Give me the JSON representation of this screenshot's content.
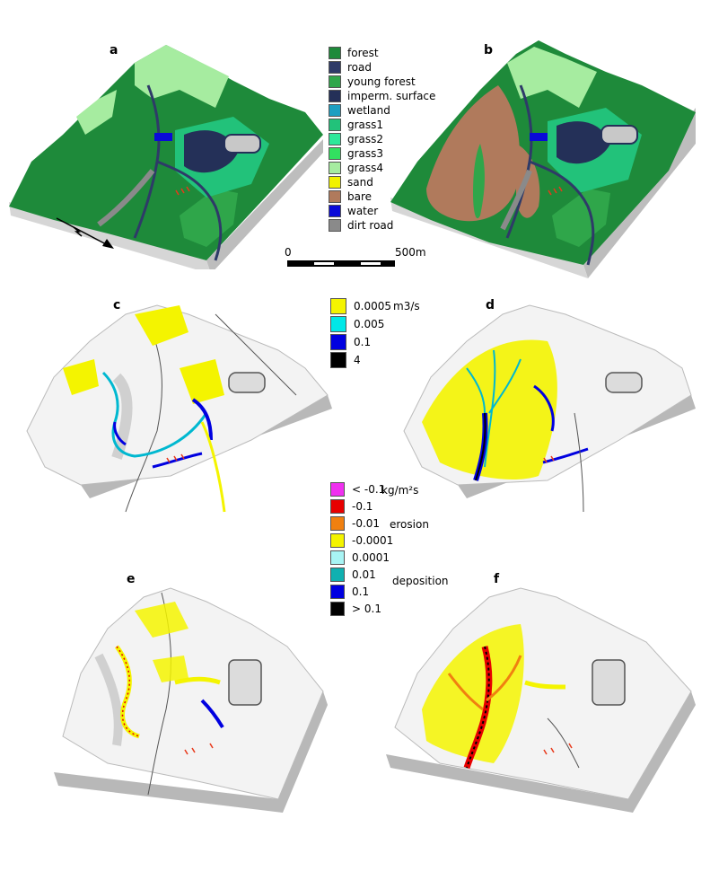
{
  "panel_labels": [
    "a",
    "b",
    "c",
    "d",
    "e",
    "f"
  ],
  "landcover_legend": {
    "items": [
      {
        "label": "forest",
        "color": "#1e8a3a"
      },
      {
        "label": "road",
        "color": "#2e3a68"
      },
      {
        "label": "young forest",
        "color": "#2fa64a"
      },
      {
        "label": "imperm. surface",
        "color": "#243058"
      },
      {
        "label": "wetland",
        "color": "#1d9fc1"
      },
      {
        "label": "grass1",
        "color": "#22c27a"
      },
      {
        "label": "grass2",
        "color": "#2ee89a"
      },
      {
        "label": "grass3",
        "color": "#32e060"
      },
      {
        "label": "grass4",
        "color": "#a6eca0"
      },
      {
        "label": "sand",
        "color": "#f2f200"
      },
      {
        "label": "bare",
        "color": "#b07a5c"
      },
      {
        "label": "water",
        "color": "#0a0ad8"
      },
      {
        "label": "dirt road",
        "color": "#8a8a8a"
      }
    ]
  },
  "scale_bar": {
    "start_label": "0",
    "end_label": "500m"
  },
  "flow_legend": {
    "unit": "m3/s",
    "items": [
      {
        "label": "0.0005",
        "color": "#f4f400"
      },
      {
        "label": "0.005",
        "color": "#00e8e8"
      },
      {
        "label": "0.1",
        "color": "#0000e0"
      },
      {
        "label": "4",
        "color": "#000000"
      }
    ]
  },
  "erosion_legend": {
    "unit": "kg/m²s",
    "erosion_label": "erosion",
    "deposition_label": "deposition",
    "items": [
      {
        "label": "< -0.1",
        "color": "#f030f0"
      },
      {
        "label": "-0.1",
        "color": "#e80000"
      },
      {
        "label": "-0.01",
        "color": "#f08010"
      },
      {
        "label": "-0.0001",
        "color": "#f4f400"
      },
      {
        "label": "0.0001",
        "color": "#a8f4f4"
      },
      {
        "label": "0.01",
        "color": "#10b0b0"
      },
      {
        "label": "0.1",
        "color": "#0000e0"
      },
      {
        "label": "> 0.1",
        "color": "#000000"
      }
    ]
  }
}
